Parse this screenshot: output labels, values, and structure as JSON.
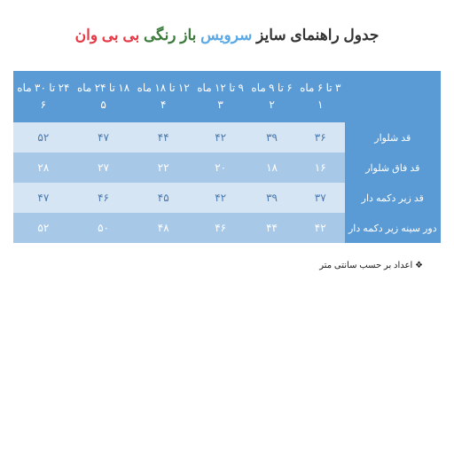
{
  "title": {
    "prefix": "جدول راهنمای سایز",
    "part1": "سرویس",
    "part2": "باز رنگی",
    "part3": "بی بی وان"
  },
  "table": {
    "header_colors": {
      "bg": "#5a9bd5",
      "text": "#ffffff"
    },
    "row_odd_bg": "#d6e5f3",
    "row_odd_text": "#4a7ab0",
    "row_even_bg": "#a8c8e8",
    "row_even_text": "#ffffff",
    "columns": [
      {
        "range": "۳ تا ۶ ماه",
        "num": "۱"
      },
      {
        "range": "۶ تا ۹ ماه",
        "num": "۲"
      },
      {
        "range": "۹ تا ۱۲ ماه",
        "num": "۳"
      },
      {
        "range": "۱۲ تا ۱۸ ماه",
        "num": "۴"
      },
      {
        "range": "۱۸ تا ۲۴ ماه",
        "num": "۵"
      },
      {
        "range": "۲۴ تا ۳۰ ماه",
        "num": "۶"
      }
    ],
    "rows": [
      {
        "label": "قد شلوار",
        "vals": [
          "۳۶",
          "۳۹",
          "۴۲",
          "۴۴",
          "۴۷",
          "۵۲"
        ]
      },
      {
        "label": "قد فاق شلوار",
        "vals": [
          "۱۶",
          "۱۸",
          "۲۰",
          "۲۲",
          "۲۷",
          "۲۸"
        ]
      },
      {
        "label": "قد زیر دکمه دار",
        "vals": [
          "۳۷",
          "۳۹",
          "۴۲",
          "۴۵",
          "۴۶",
          "۴۷"
        ]
      },
      {
        "label": "دور سینه زیر دکمه دار",
        "vals": [
          "۴۲",
          "۴۴",
          "۴۶",
          "۴۸",
          "۵۰",
          "۵۲"
        ]
      }
    ]
  },
  "note": "اعداد بر حسب سانتی متر"
}
